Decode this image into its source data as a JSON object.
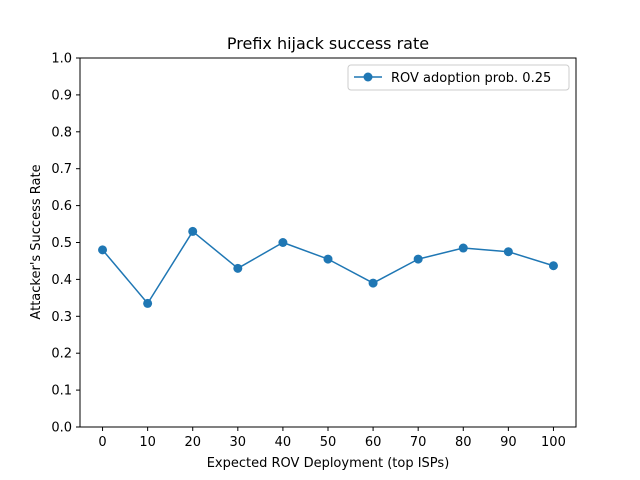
{
  "chart_data": {
    "type": "line",
    "title": "Prefix hijack success rate",
    "xlabel": "Expected ROV Deployment (top ISPs)",
    "ylabel": "Attacker's Success Rate",
    "x": [
      0,
      10,
      20,
      30,
      40,
      50,
      60,
      70,
      80,
      90,
      100
    ],
    "xticks": [
      "0",
      "10",
      "20",
      "30",
      "40",
      "50",
      "60",
      "70",
      "80",
      "90",
      "100"
    ],
    "yticks": [
      "0.0",
      "0.1",
      "0.2",
      "0.3",
      "0.4",
      "0.5",
      "0.6",
      "0.7",
      "0.8",
      "0.9",
      "1.0"
    ],
    "ylim": [
      0,
      1
    ],
    "xlim": [
      -5,
      105
    ],
    "grid": false,
    "legend_position": "upper right",
    "series": [
      {
        "name": "ROV adoption prob. 0.25",
        "color": "#1f77b4",
        "marker": "circle",
        "values": [
          0.48,
          0.335,
          0.53,
          0.43,
          0.5,
          0.455,
          0.39,
          0.455,
          0.485,
          0.475,
          0.437
        ]
      }
    ]
  }
}
